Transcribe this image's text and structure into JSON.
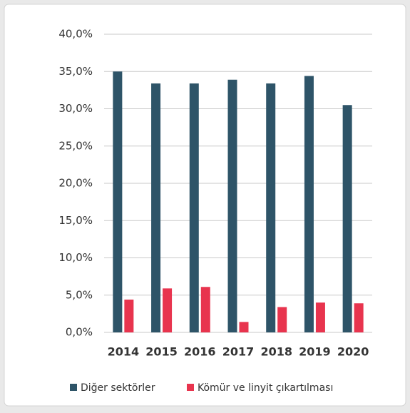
{
  "chart_data": {
    "type": "bar",
    "categories": [
      "2014",
      "2015",
      "2016",
      "2017",
      "2018",
      "2019",
      "2020"
    ],
    "series": [
      {
        "name": "Diğer sektörler",
        "color": "#2e5468",
        "values": [
          35.0,
          33.4,
          33.4,
          33.9,
          33.4,
          34.4,
          30.5
        ]
      },
      {
        "name": "Kömür ve linyit çıkartılması",
        "color": "#e8344e",
        "values": [
          4.4,
          5.9,
          6.1,
          1.4,
          3.4,
          4.0,
          3.9
        ]
      }
    ],
    "ylim": [
      0,
      40
    ],
    "yticks": [
      {
        "value": 0,
        "label": "0,0%"
      },
      {
        "value": 5,
        "label": "5,0%"
      },
      {
        "value": 10,
        "label": "10,0%"
      },
      {
        "value": 15,
        "label": "15,0%"
      },
      {
        "value": 20,
        "label": "20,0%"
      },
      {
        "value": 25,
        "label": "25,0%"
      },
      {
        "value": 30,
        "label": "30,0%"
      },
      {
        "value": 35,
        "label": "35,0%"
      },
      {
        "value": 40,
        "label": "40,0%"
      }
    ],
    "grid": true,
    "legend": "bottom"
  }
}
